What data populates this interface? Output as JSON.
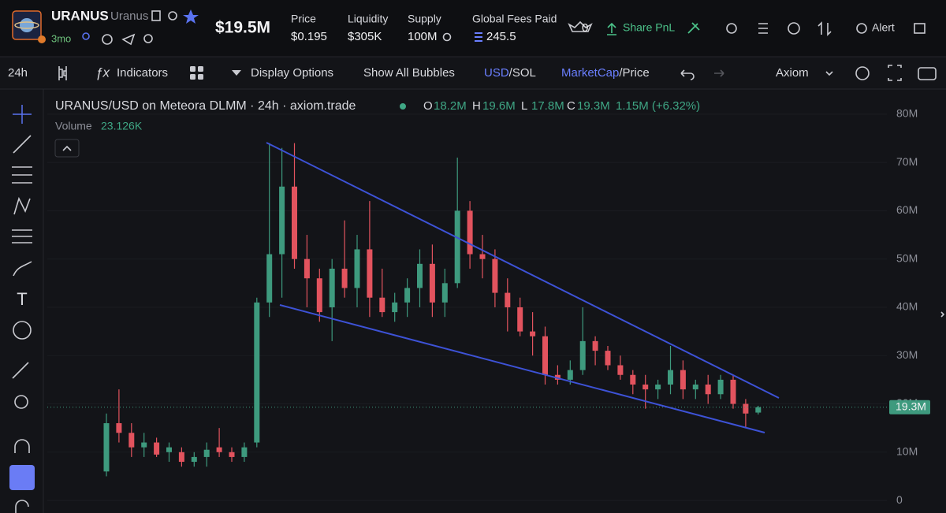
{
  "header": {
    "symbol": "URANUS",
    "name": "Uranus",
    "age": "3mo",
    "market_cap": "$19.5M",
    "stats": [
      {
        "label": "Price",
        "value": "$0.195"
      },
      {
        "label": "Liquidity",
        "value": "$305K"
      },
      {
        "label": "Supply",
        "value": "100M"
      },
      {
        "label": "Global Fees Paid",
        "value": "245.5"
      }
    ],
    "count": "0",
    "share": "Share PnL",
    "alert": "Alert"
  },
  "toolbar": {
    "interval": "24h",
    "indicators": "Indicators",
    "display": "Display Options",
    "bubbles": "Show All Bubbles",
    "currency": {
      "active": "USD",
      "separator": "/",
      "other": "SOL"
    },
    "metric": {
      "active": "MarketCap",
      "separator": "/",
      "other": "Price"
    },
    "source": "Axiom"
  },
  "chart": {
    "type": "candlestick",
    "legend": {
      "title": "URANUS/USD on Meteora DLMM · 24h · axiom.trade",
      "ohlc": [
        {
          "label": "O",
          "value": "18.2M"
        },
        {
          "label": "H",
          "value": "19.6M"
        },
        {
          "label": "L",
          "value": "17.8M"
        },
        {
          "label": "C",
          "value": "19.3M"
        }
      ],
      "change": "1.15M (+6.32%)",
      "volume_label": "Volume",
      "volume_value": "23.126K"
    },
    "ylim": [
      -2600000,
      85200000
    ],
    "yticks": [
      {
        "value": 0,
        "label": "0"
      },
      {
        "value": 10000000,
        "label": "10M"
      },
      {
        "value": 20000000,
        "label": "20M"
      },
      {
        "value": 30000000,
        "label": "30M"
      },
      {
        "value": 40000000,
        "label": "40M"
      },
      {
        "value": 50000000,
        "label": "50M"
      },
      {
        "value": 60000000,
        "label": "60M"
      },
      {
        "value": 70000000,
        "label": "70M"
      },
      {
        "value": 80000000,
        "label": "80M"
      }
    ],
    "last_price": {
      "value": 19300000,
      "label": "19.3M"
    },
    "up_color": "#3e9a7e",
    "down_color": "#e2535e",
    "candles": {
      "open": [
        6000000,
        16000000,
        14000000,
        11000000,
        12000000,
        10000000,
        10000000,
        8000000,
        9000000,
        11000000,
        10000000,
        9000000,
        12000000,
        41000000,
        51000000,
        65000000,
        50000000,
        46000000,
        40000000,
        48000000,
        44000000,
        52000000,
        42000000,
        39000000,
        41000000,
        44000000,
        49000000,
        41000000,
        45000000,
        60000000,
        51000000,
        50000000,
        43000000,
        40000000,
        35000000,
        34000000,
        26000000,
        25000000,
        27000000,
        33000000,
        31000000,
        28000000,
        26000000,
        24000000,
        23000000,
        24000000,
        27000000,
        23000000,
        24000000,
        22000000,
        25000000,
        20000000,
        18200000
      ],
      "high": [
        18000000,
        23000000,
        16000000,
        14000000,
        13000000,
        12000000,
        11000000,
        10000000,
        12000000,
        15000000,
        11000000,
        12000000,
        42000000,
        74000000,
        73000000,
        74000000,
        55000000,
        48000000,
        50000000,
        58000000,
        55000000,
        62000000,
        48000000,
        43000000,
        46000000,
        52000000,
        53000000,
        48000000,
        71000000,
        62000000,
        55000000,
        52000000,
        46000000,
        42000000,
        39000000,
        36000000,
        28000000,
        29000000,
        40000000,
        34000000,
        32000000,
        30000000,
        27000000,
        26000000,
        25000000,
        32000000,
        29000000,
        25000000,
        26000000,
        26000000,
        26000000,
        21000000,
        19600000
      ],
      "low": [
        5000000,
        12000000,
        9000000,
        9000000,
        9000000,
        8000000,
        7000000,
        7000000,
        7000000,
        9000000,
        8000000,
        8000000,
        11000000,
        38000000,
        42000000,
        48000000,
        40000000,
        37000000,
        33000000,
        42000000,
        40000000,
        38000000,
        38000000,
        37000000,
        38000000,
        40000000,
        38000000,
        38000000,
        44000000,
        48000000,
        46000000,
        40000000,
        35000000,
        34000000,
        30000000,
        24000000,
        24000000,
        24000000,
        26000000,
        28000000,
        27000000,
        25000000,
        22000000,
        19000000,
        21000000,
        22000000,
        21000000,
        21000000,
        20000000,
        21000000,
        19000000,
        15000000,
        17800000
      ],
      "close": [
        16000000,
        14000000,
        11000000,
        12000000,
        9500000,
        11000000,
        8000000,
        9000000,
        10500000,
        10000000,
        9000000,
        11000000,
        41000000,
        51000000,
        65000000,
        50000000,
        46000000,
        39000000,
        48000000,
        44000000,
        52000000,
        42000000,
        39000000,
        41000000,
        44000000,
        49000000,
        41000000,
        45000000,
        60000000,
        51000000,
        50000000,
        43000000,
        40000000,
        35000000,
        34000000,
        26000000,
        25000000,
        27000000,
        33000000,
        31000000,
        28000000,
        26000000,
        24000000,
        23000000,
        24000000,
        27000000,
        23000000,
        24000000,
        22000000,
        25000000,
        20000000,
        18000000,
        19300000
      ]
    }
  }
}
